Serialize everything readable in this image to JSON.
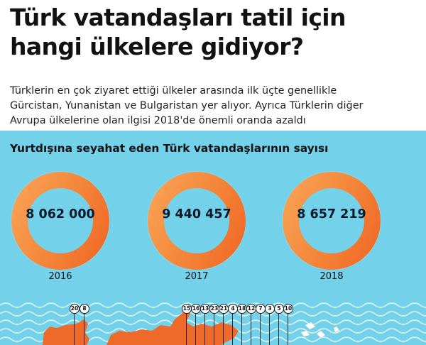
{
  "title_line1": "Türk vatandaşları tatil için",
  "title_line2": "hangi ülkelere gidiyor?",
  "subtitle_line1": "Türklerin en çok ziyaret ettiği ülkeler arasında ilk üçte genellikle",
  "subtitle_line2": "Gürcistan, Yunanistan ve Bulgaristan yer alıyor. Ayrıca Türklerin diğer",
  "subtitle_line3": "Avrupa ülkelerine olan ilgisi 2018'de önemli oranda azaldı",
  "panel": {
    "heading": "Yurtdışına seyahat eden Türk vatandaşlarının sayısı",
    "background_color": "#74d1ea",
    "donuts": [
      {
        "year": "2016",
        "value": "8 062 000"
      },
      {
        "year": "2017",
        "value": "9 440 457"
      },
      {
        "year": "2018",
        "value": "8 657 219"
      }
    ],
    "donut_color": "#f58a3c"
  },
  "map_pins": [
    "20",
    "8",
    "15",
    "16",
    "13",
    "23",
    "21",
    "4",
    "18",
    "12",
    "7",
    "3",
    "5",
    "10"
  ]
}
